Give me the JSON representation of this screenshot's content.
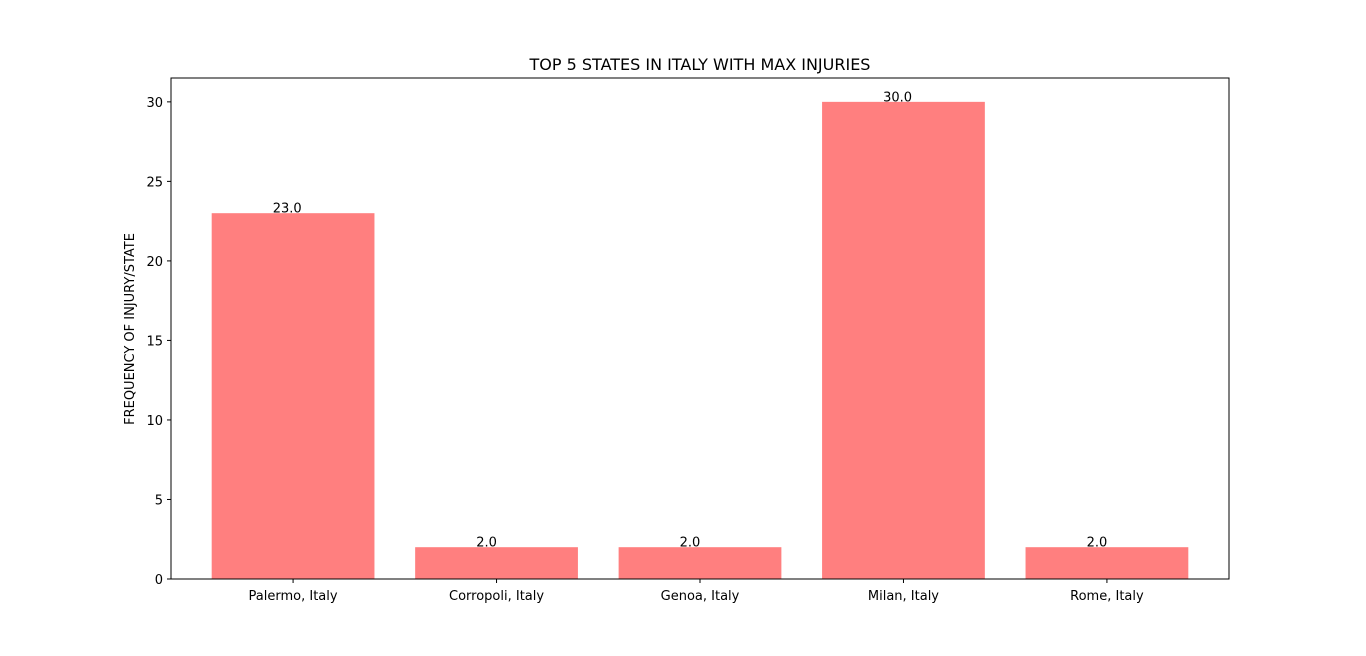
{
  "chart_data": {
    "type": "bar",
    "title": "TOP 5 STATES IN ITALY WITH MAX INJURIES",
    "xlabel": "",
    "ylabel": "FREQUENCY OF INJURY/STATE",
    "categories": [
      "Palermo, Italy",
      "Corropoli, Italy",
      "Genoa, Italy",
      "Milan, Italy",
      "Rome, Italy"
    ],
    "values": [
      23.0,
      2.0,
      2.0,
      30.0,
      2.0
    ],
    "data_labels": [
      "23.0",
      "2.0",
      "2.0",
      "30.0",
      "2.0"
    ],
    "ylim": [
      0,
      31.5
    ],
    "yticks": [
      0,
      5,
      10,
      15,
      20,
      25,
      30
    ],
    "ytick_labels": [
      "0",
      "5",
      "10",
      "15",
      "20",
      "25",
      "30"
    ],
    "bar_color": "#ff7f7f",
    "grid": false,
    "legend": "none"
  }
}
